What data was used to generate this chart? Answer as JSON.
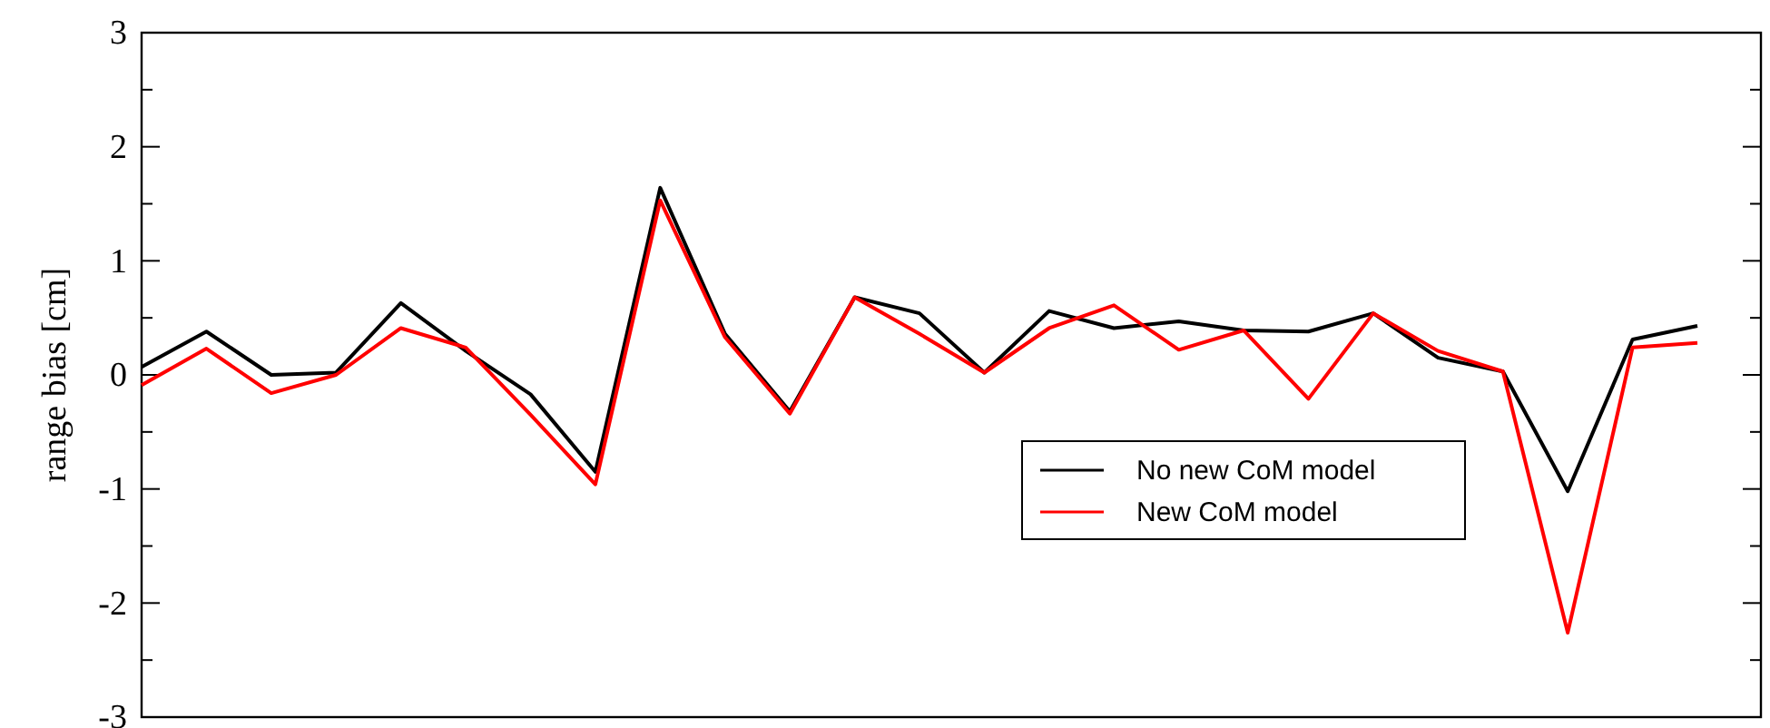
{
  "chart_data": {
    "type": "line",
    "ylabel": "range bias [cm]",
    "categories": [
      null,
      null,
      null,
      null,
      null,
      null,
      null,
      null,
      null,
      null,
      null,
      null,
      null,
      null,
      null,
      null,
      null,
      null,
      null,
      null,
      null,
      null,
      null,
      null,
      null
    ],
    "ylim": [
      -3,
      3
    ],
    "yticks": [
      -3,
      -2,
      -1,
      0,
      1,
      2,
      3
    ],
    "grid": false,
    "legend": "right",
    "marker": "none",
    "line_style": "solid",
    "series": [
      {
        "name": "No new CoM model",
        "color": "#000000",
        "values": [
          0.07,
          0.38,
          0.0,
          0.02,
          0.63,
          0.21,
          -0.17,
          -0.85,
          1.64,
          0.36,
          -0.32,
          0.68,
          0.54,
          0.02,
          0.56,
          0.41,
          0.47,
          0.39,
          0.38,
          0.54,
          0.15,
          0.03,
          -1.02,
          0.31,
          0.43
        ]
      },
      {
        "name": "New CoM model",
        "color": "#ff0000",
        "values": [
          -0.09,
          0.23,
          -0.16,
          0.0,
          0.41,
          0.24,
          -0.35,
          -0.96,
          1.53,
          0.33,
          -0.34,
          0.68,
          0.36,
          0.02,
          0.41,
          0.61,
          0.22,
          0.39,
          -0.21,
          0.54,
          0.21,
          0.03,
          -2.26,
          0.24,
          0.28
        ]
      }
    ]
  }
}
